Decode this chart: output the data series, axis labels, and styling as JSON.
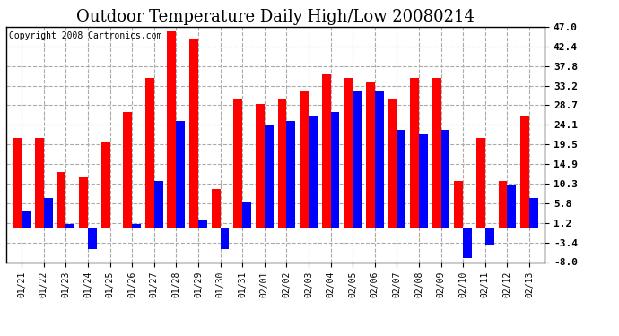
{
  "title": "Outdoor Temperature Daily High/Low 20080214",
  "copyright": "Copyright 2008 Cartronics.com",
  "dates": [
    "01/21",
    "01/22",
    "01/23",
    "01/24",
    "01/25",
    "01/26",
    "01/27",
    "01/28",
    "01/29",
    "01/30",
    "01/31",
    "02/01",
    "02/02",
    "02/03",
    "02/04",
    "02/05",
    "02/06",
    "02/07",
    "02/08",
    "02/09",
    "02/10",
    "02/11",
    "02/12",
    "02/13"
  ],
  "highs": [
    21,
    21,
    13,
    12,
    20,
    27,
    35,
    46,
    44,
    9,
    30,
    29,
    30,
    32,
    36,
    35,
    34,
    30,
    35,
    35,
    11,
    21,
    11,
    26
  ],
  "lows": [
    4,
    7,
    1,
    -5,
    0,
    1,
    11,
    25,
    2,
    -5,
    6,
    24,
    25,
    26,
    27,
    32,
    32,
    23,
    22,
    23,
    -7,
    -4,
    10,
    7
  ],
  "high_color": "#ff0000",
  "low_color": "#0000ff",
  "background_color": "#ffffff",
  "grid_color": "#aaaaaa",
  "ylim": [
    -8.0,
    47.0
  ],
  "yticks": [
    -8.0,
    -3.4,
    1.2,
    5.8,
    10.3,
    14.9,
    19.5,
    24.1,
    28.7,
    33.2,
    37.8,
    42.4,
    47.0
  ],
  "bar_width": 0.4,
  "title_fontsize": 13,
  "tick_fontsize": 7,
  "copyright_fontsize": 7,
  "ytick_fontsize": 8
}
